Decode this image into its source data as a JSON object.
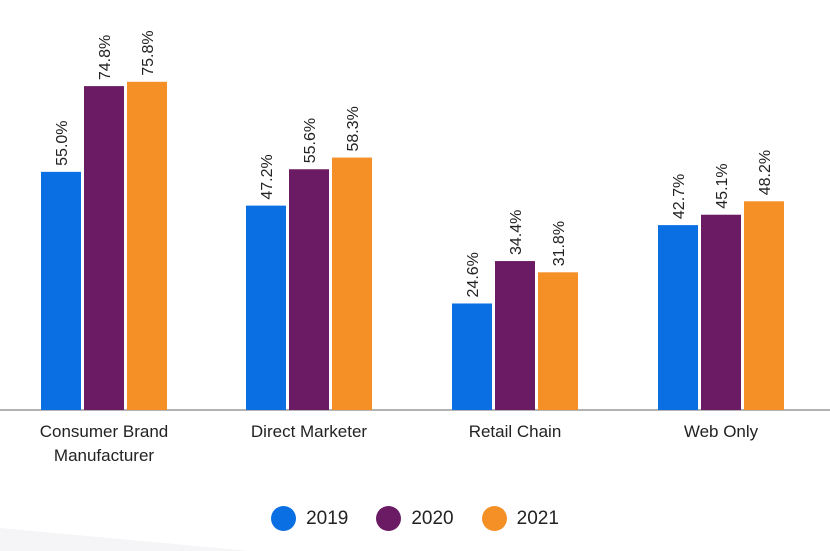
{
  "colors": {
    "2019": "#0a6fe3",
    "2020": "#6a1b63",
    "2021": "#f49025"
  },
  "chart_data": {
    "type": "bar",
    "title": "",
    "xlabel": "",
    "ylabel": "",
    "ylim": [
      0,
      80
    ],
    "grid": false,
    "legend_position": "bottom",
    "categories": [
      [
        "Consumer Brand",
        "Manufacturer"
      ],
      [
        "Direct Marketer"
      ],
      [
        "Retail Chain"
      ],
      [
        "Web Only"
      ]
    ],
    "series": [
      {
        "name": "2019",
        "values": [
          55.0,
          47.2,
          24.6,
          42.7
        ],
        "labels": [
          "55.0%",
          "47.2%",
          "24.6%",
          "42.7%"
        ]
      },
      {
        "name": "2020",
        "values": [
          74.8,
          55.6,
          34.4,
          45.1
        ],
        "labels": [
          "74.8%",
          "55.6%",
          "34.4%",
          "45.1%"
        ]
      },
      {
        "name": "2021",
        "values": [
          75.8,
          58.3,
          31.8,
          48.2
        ],
        "labels": [
          "75.8%",
          "58.3%",
          "31.8%",
          "48.2%"
        ]
      }
    ]
  },
  "legend": [
    {
      "label": "2019"
    },
    {
      "label": "2020"
    },
    {
      "label": "2021"
    }
  ]
}
